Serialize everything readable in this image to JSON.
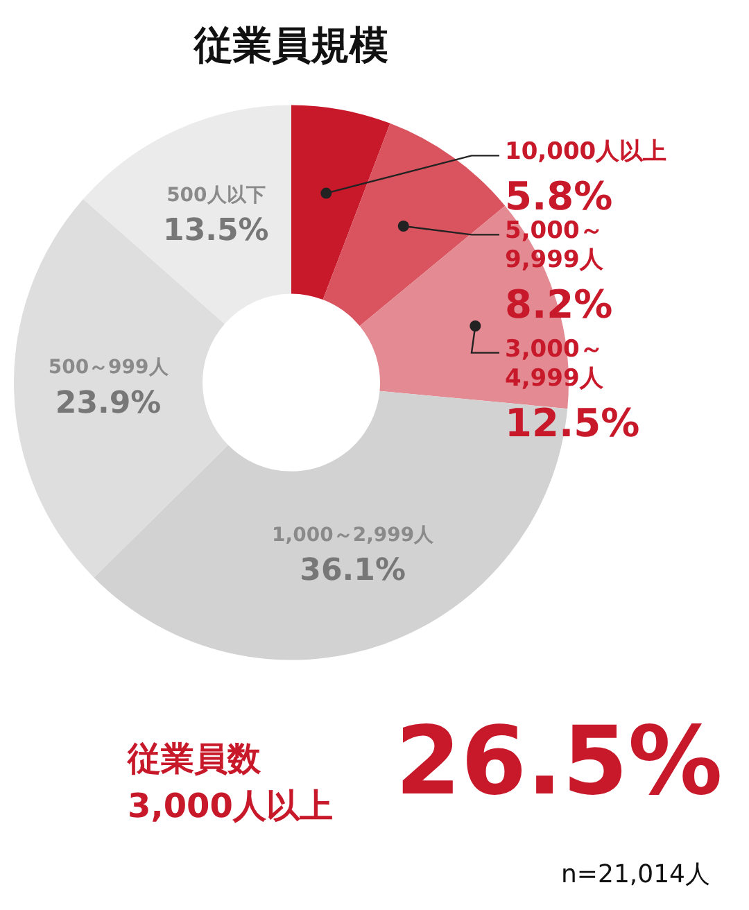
{
  "chart_data": {
    "type": "donut",
    "title": "従業員規模",
    "categories": [
      "10,000人以上",
      "5,000～9,999人",
      "3,000～4,999人",
      "1,000～2,999人",
      "500～999人",
      "500人以下"
    ],
    "values": [
      5.8,
      8.2,
      12.5,
      36.1,
      23.9,
      13.5
    ],
    "colors": [
      "#c8192b",
      "#d9545f",
      "#e48a93",
      "#d2d2d2",
      "#dedede",
      "#ebebeb"
    ],
    "value_labels": [
      "5.8%",
      "8.2%",
      "12.5%",
      "36.1%",
      "23.9%",
      "13.5%"
    ],
    "annotations": [
      "従業員数",
      "3,000人以上",
      "26.5%",
      "n=21,014人"
    ]
  }
}
